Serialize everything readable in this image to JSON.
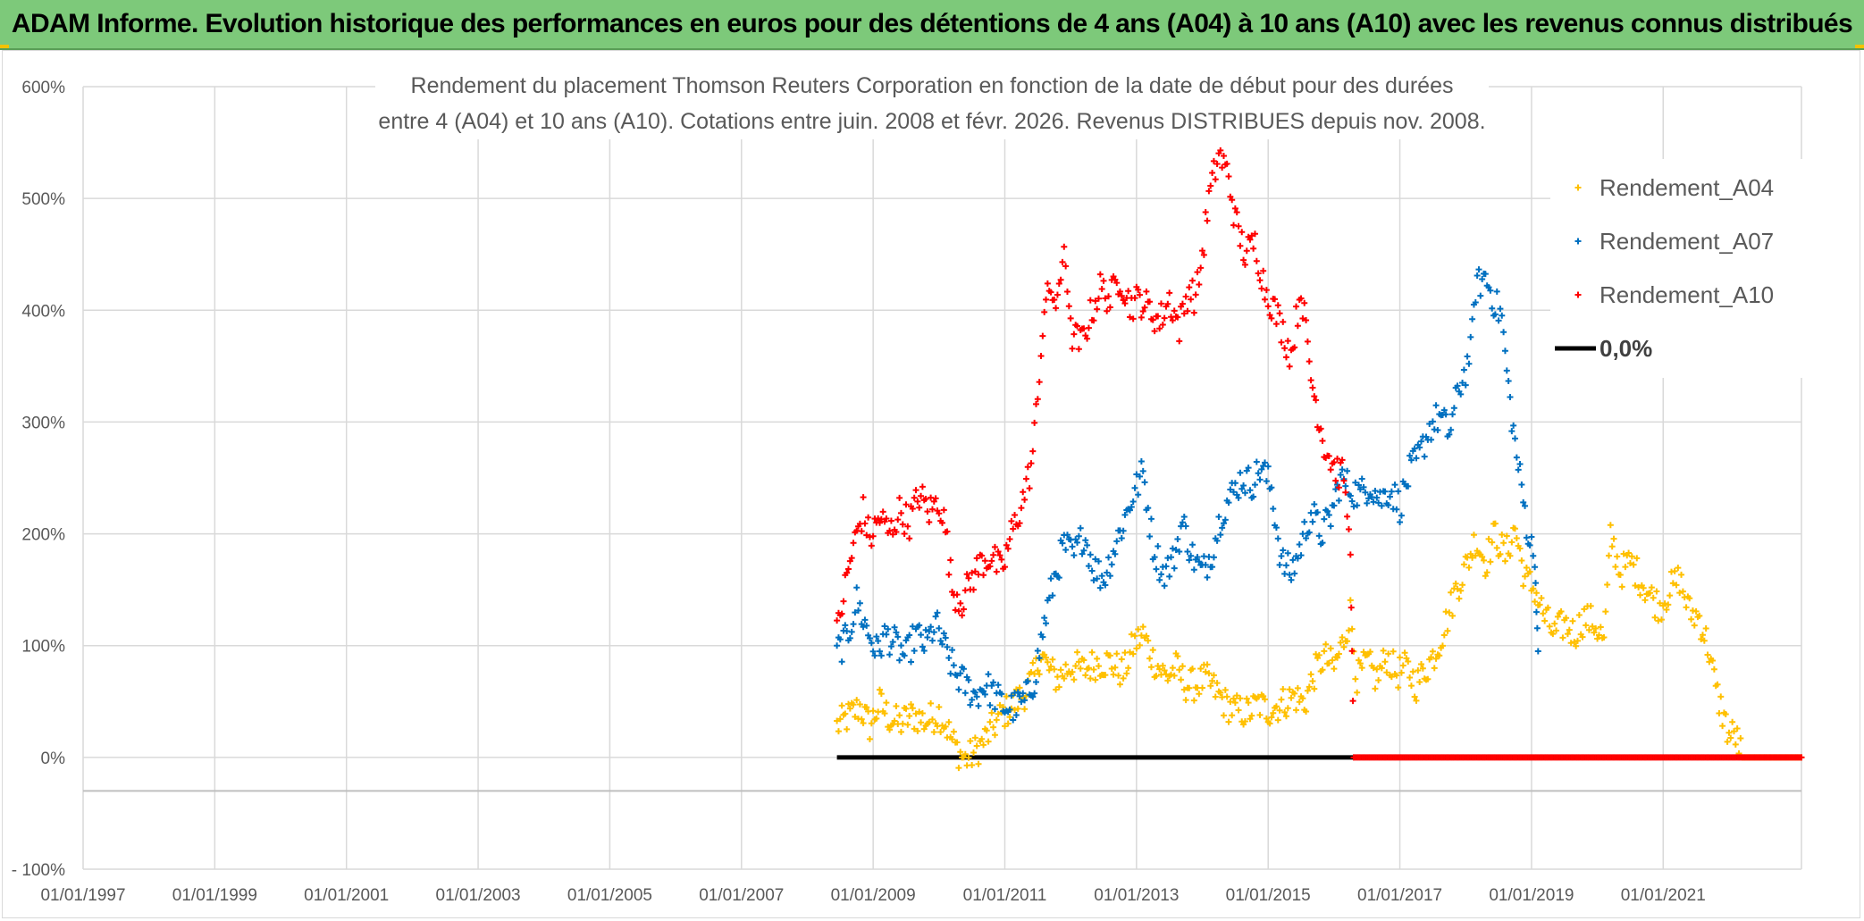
{
  "banner": {
    "title": "ADAM Informe. Evolution historique des performances en euros pour des détentions de 4 ans (A04) à 10 ans (A10) avec les revenus connus distribués"
  },
  "chart_data": {
    "type": "scatter",
    "title_lines": [
      "Rendement du placement Thomson Reuters Corporation en fonction de la date de début pour des durées",
      "entre 4 (A04) et 10 ans (A10). Cotations entre juin. 2008 et févr. 2026. Revenus DISTRIBUES depuis nov. 2008."
    ],
    "x_axis": {
      "type": "date_years",
      "range_years": [
        1997.0,
        2023.1
      ],
      "tick_years": [
        1997,
        1999,
        2001,
        2003,
        2005,
        2007,
        2009,
        2011,
        2013,
        2015,
        2017,
        2019,
        2021
      ],
      "tick_labels": [
        "01/01/1997",
        "01/01/1999",
        "01/01/2001",
        "01/01/2003",
        "01/01/2005",
        "01/01/2007",
        "01/01/2009",
        "01/01/2011",
        "01/01/2013",
        "01/01/2015",
        "01/01/2017",
        "01/01/2019",
        "01/01/2021"
      ]
    },
    "y_axis": {
      "range": [
        -100,
        600
      ],
      "tick_values": [
        -100,
        0,
        100,
        200,
        300,
        400,
        500,
        600
      ],
      "tick_labels": [
        "- 100%",
        "0%",
        "100%",
        "200%",
        "300%",
        "400%",
        "500%",
        "600%"
      ],
      "grid": true
    },
    "legend": {
      "position": "top-right",
      "items": [
        "Rendement_A04",
        "Rendement_A07",
        "Rendement_A10",
        "0,0%"
      ]
    },
    "series": [
      {
        "name": "Rendement_A04",
        "color": "#ffc000",
        "marker": "plus",
        "points": [
          [
            2008.45,
            28
          ],
          [
            2008.6,
            35
          ],
          [
            2008.8,
            45
          ],
          [
            2008.95,
            28
          ],
          [
            2009.1,
            48
          ],
          [
            2009.25,
            35
          ],
          [
            2009.4,
            30
          ],
          [
            2009.6,
            38
          ],
          [
            2009.8,
            32
          ],
          [
            2010.0,
            40
          ],
          [
            2010.1,
            30
          ],
          [
            2010.2,
            15
          ],
          [
            2010.3,
            5
          ],
          [
            2010.4,
            -2
          ],
          [
            2010.5,
            2
          ],
          [
            2010.65,
            12
          ],
          [
            2010.8,
            25
          ],
          [
            2010.95,
            38
          ],
          [
            2011.1,
            45
          ],
          [
            2011.3,
            58
          ],
          [
            2011.45,
            72
          ],
          [
            2011.55,
            95
          ],
          [
            2011.65,
            80
          ],
          [
            2011.8,
            70
          ],
          [
            2012.0,
            82
          ],
          [
            2012.2,
            78
          ],
          [
            2012.4,
            85
          ],
          [
            2012.6,
            85
          ],
          [
            2012.8,
            75
          ],
          [
            2012.95,
            100
          ],
          [
            2013.1,
            110
          ],
          [
            2013.25,
            88
          ],
          [
            2013.45,
            72
          ],
          [
            2013.6,
            80
          ],
          [
            2013.75,
            65
          ],
          [
            2013.9,
            65
          ],
          [
            2014.05,
            70
          ],
          [
            2014.2,
            60
          ],
          [
            2014.35,
            48
          ],
          [
            2014.5,
            42
          ],
          [
            2014.7,
            40
          ],
          [
            2014.85,
            48
          ],
          [
            2015.0,
            42
          ],
          [
            2015.2,
            48
          ],
          [
            2015.4,
            55
          ],
          [
            2015.55,
            48
          ],
          [
            2015.7,
            75
          ],
          [
            2015.85,
            90
          ],
          [
            2016.0,
            80
          ],
          [
            2016.15,
            105
          ],
          [
            2016.25,
            130
          ],
          [
            2016.35,
            70
          ],
          [
            2016.5,
            85
          ],
          [
            2016.65,
            70
          ],
          [
            2016.8,
            90
          ],
          [
            2016.95,
            75
          ],
          [
            2017.1,
            80
          ],
          [
            2017.25,
            65
          ],
          [
            2017.4,
            80
          ],
          [
            2017.55,
            95
          ],
          [
            2017.7,
            120
          ],
          [
            2017.85,
            150
          ],
          [
            2018.0,
            170
          ],
          [
            2018.15,
            195
          ],
          [
            2018.3,
            175
          ],
          [
            2018.45,
            200
          ],
          [
            2018.6,
            180
          ],
          [
            2018.75,
            205
          ],
          [
            2018.9,
            160
          ],
          [
            2019.05,
            150
          ],
          [
            2019.2,
            125
          ],
          [
            2019.35,
            110
          ],
          [
            2019.5,
            120
          ],
          [
            2019.65,
            110
          ],
          [
            2019.8,
            125
          ],
          [
            2019.95,
            120
          ],
          [
            2020.1,
            105
          ],
          [
            2020.2,
            200
          ],
          [
            2020.35,
            165
          ],
          [
            2020.5,
            175
          ],
          [
            2020.65,
            160
          ],
          [
            2020.8,
            145
          ],
          [
            2020.95,
            135
          ],
          [
            2021.1,
            150
          ],
          [
            2021.25,
            160
          ],
          [
            2021.4,
            130
          ],
          [
            2021.55,
            125
          ],
          [
            2021.7,
            95
          ],
          [
            2021.8,
            60
          ],
          [
            2021.9,
            40
          ],
          [
            2022.0,
            20
          ],
          [
            2022.1,
            20
          ],
          [
            2022.2,
            0
          ],
          [
            2022.3,
            0
          ],
          [
            2022.6,
            0
          ],
          [
            2022.9,
            0
          ],
          [
            2023.1,
            0
          ]
        ]
      },
      {
        "name": "Rendement_A07",
        "color": "#0070c0",
        "marker": "plus",
        "points": [
          [
            2008.45,
            95
          ],
          [
            2008.6,
            105
          ],
          [
            2008.75,
            140
          ],
          [
            2008.9,
            115
          ],
          [
            2009.05,
            95
          ],
          [
            2009.2,
            110
          ],
          [
            2009.35,
            100
          ],
          [
            2009.5,
            90
          ],
          [
            2009.65,
            110
          ],
          [
            2009.8,
            100
          ],
          [
            2009.95,
            120
          ],
          [
            2010.1,
            95
          ],
          [
            2010.25,
            75
          ],
          [
            2010.4,
            65
          ],
          [
            2010.55,
            55
          ],
          [
            2010.7,
            65
          ],
          [
            2010.85,
            55
          ],
          [
            2011.0,
            45
          ],
          [
            2011.15,
            45
          ],
          [
            2011.3,
            50
          ],
          [
            2011.45,
            70
          ],
          [
            2011.6,
            120
          ],
          [
            2011.75,
            160
          ],
          [
            2011.9,
            190
          ],
          [
            2012.05,
            180
          ],
          [
            2012.2,
            200
          ],
          [
            2012.35,
            170
          ],
          [
            2012.5,
            160
          ],
          [
            2012.65,
            185
          ],
          [
            2012.8,
            210
          ],
          [
            2012.95,
            235
          ],
          [
            2013.1,
            255
          ],
          [
            2013.25,
            190
          ],
          [
            2013.4,
            165
          ],
          [
            2013.55,
            175
          ],
          [
            2013.7,
            210
          ],
          [
            2013.85,
            180
          ],
          [
            2014.0,
            165
          ],
          [
            2014.15,
            185
          ],
          [
            2014.3,
            220
          ],
          [
            2014.45,
            235
          ],
          [
            2014.6,
            250
          ],
          [
            2014.75,
            245
          ],
          [
            2014.9,
            260
          ],
          [
            2015.05,
            240
          ],
          [
            2015.2,
            175
          ],
          [
            2015.35,
            165
          ],
          [
            2015.5,
            190
          ],
          [
            2015.65,
            220
          ],
          [
            2015.8,
            200
          ],
          [
            2015.95,
            215
          ],
          [
            2016.1,
            250
          ],
          [
            2016.25,
            240
          ],
          [
            2016.4,
            235
          ],
          [
            2016.55,
            245
          ],
          [
            2016.7,
            230
          ],
          [
            2016.85,
            240
          ],
          [
            2017.0,
            225
          ],
          [
            2017.15,
            255
          ],
          [
            2017.3,
            270
          ],
          [
            2017.45,
            295
          ],
          [
            2017.6,
            305
          ],
          [
            2017.75,
            290
          ],
          [
            2017.9,
            330
          ],
          [
            2018.05,
            355
          ],
          [
            2018.15,
            420
          ],
          [
            2018.3,
            430
          ],
          [
            2018.45,
            405
          ],
          [
            2018.55,
            395
          ],
          [
            2018.65,
            330
          ],
          [
            2018.75,
            280
          ],
          [
            2018.85,
            240
          ],
          [
            2018.95,
            200
          ],
          [
            2019.05,
            175
          ],
          [
            2019.1,
            95
          ]
        ]
      },
      {
        "name": "Rendement_A10",
        "color": "#ff0000",
        "marker": "plus",
        "points": [
          [
            2008.45,
            110
          ],
          [
            2008.55,
            145
          ],
          [
            2008.65,
            175
          ],
          [
            2008.75,
            200
          ],
          [
            2008.85,
            220
          ],
          [
            2008.95,
            195
          ],
          [
            2009.1,
            215
          ],
          [
            2009.25,
            200
          ],
          [
            2009.4,
            220
          ],
          [
            2009.55,
            210
          ],
          [
            2009.7,
            235
          ],
          [
            2009.85,
            220
          ],
          [
            2010.0,
            230
          ],
          [
            2010.1,
            205
          ],
          [
            2010.2,
            150
          ],
          [
            2010.35,
            140
          ],
          [
            2010.5,
            160
          ],
          [
            2010.65,
            175
          ],
          [
            2010.8,
            180
          ],
          [
            2010.95,
            165
          ],
          [
            2011.1,
            200
          ],
          [
            2011.25,
            225
          ],
          [
            2011.4,
            260
          ],
          [
            2011.5,
            320
          ],
          [
            2011.6,
            400
          ],
          [
            2011.7,
            420
          ],
          [
            2011.8,
            400
          ],
          [
            2011.9,
            460
          ],
          [
            2012.0,
            380
          ],
          [
            2012.15,
            370
          ],
          [
            2012.3,
            395
          ],
          [
            2012.45,
            420
          ],
          [
            2012.6,
            410
          ],
          [
            2012.75,
            430
          ],
          [
            2012.9,
            405
          ],
          [
            2013.05,
            410
          ],
          [
            2013.2,
            400
          ],
          [
            2013.35,
            390
          ],
          [
            2013.5,
            410
          ],
          [
            2013.65,
            385
          ],
          [
            2013.8,
            420
          ],
          [
            2013.9,
            410
          ],
          [
            2014.0,
            450
          ],
          [
            2014.1,
            500
          ],
          [
            2014.25,
            540
          ],
          [
            2014.4,
            520
          ],
          [
            2014.5,
            480
          ],
          [
            2014.65,
            450
          ],
          [
            2014.8,
            460
          ],
          [
            2014.95,
            420
          ],
          [
            2015.1,
            400
          ],
          [
            2015.2,
            385
          ],
          [
            2015.35,
            360
          ],
          [
            2015.5,
            420
          ],
          [
            2015.65,
            340
          ],
          [
            2015.75,
            310
          ],
          [
            2015.85,
            280
          ],
          [
            2016.0,
            260
          ],
          [
            2016.15,
            250
          ],
          [
            2016.25,
            185
          ],
          [
            2016.3,
            0
          ],
          [
            2016.7,
            0
          ],
          [
            2017.2,
            0
          ],
          [
            2017.8,
            0
          ],
          [
            2018.4,
            0
          ],
          [
            2019.0,
            0
          ],
          [
            2019.6,
            0
          ],
          [
            2020.2,
            0
          ],
          [
            2020.8,
            0
          ],
          [
            2021.4,
            0
          ],
          [
            2022.0,
            0
          ],
          [
            2022.6,
            0
          ],
          [
            2023.1,
            0
          ]
        ]
      }
    ],
    "zero_line": {
      "name": "0,0%",
      "color": "#000000",
      "x_range_years": [
        2008.45,
        2023.1
      ],
      "value": 0
    }
  }
}
